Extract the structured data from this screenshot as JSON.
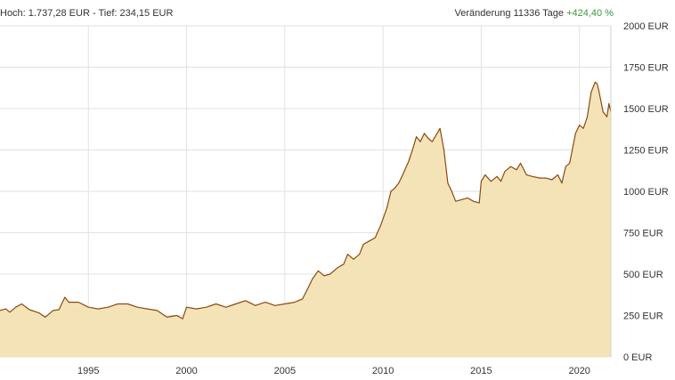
{
  "header": {
    "range_text": "Hoch: 1.737,28 EUR - Tief: 234,15 EUR",
    "change_label": "Veränderung 11336 Tage",
    "change_value": "+424,40 %"
  },
  "colors": {
    "line": "#8b4a10",
    "fill": "#f5e3b8",
    "grid": "#e2e2e2",
    "positive": "#3a9a3a"
  },
  "chart_data": {
    "type": "area",
    "title": "",
    "xlabel": "",
    "ylabel": "",
    "xlim": [
      1990.5,
      2021.6
    ],
    "ylim": [
      0,
      2000
    ],
    "x_ticks": [
      {
        "value": 1995,
        "label": "1995"
      },
      {
        "value": 2000,
        "label": "2000"
      },
      {
        "value": 2005,
        "label": "2005"
      },
      {
        "value": 2010,
        "label": "2010"
      },
      {
        "value": 2015,
        "label": "2015"
      },
      {
        "value": 2020,
        "label": "2020"
      }
    ],
    "y_ticks": [
      {
        "value": 0,
        "label": "0 EUR"
      },
      {
        "value": 250,
        "label": "250 EUR"
      },
      {
        "value": 500,
        "label": "500 EUR"
      },
      {
        "value": 750,
        "label": "750 EUR"
      },
      {
        "value": 1000,
        "label": "1000 EUR"
      },
      {
        "value": 1250,
        "label": "1250 EUR"
      },
      {
        "value": 1500,
        "label": "1500 EUR"
      },
      {
        "value": 1750,
        "label": "1750 EUR"
      },
      {
        "value": 2000,
        "label": "2000 EUR"
      }
    ],
    "grid": true,
    "series": [
      {
        "x": [
          1990.5,
          1990.8,
          1991.0,
          1991.3,
          1991.6,
          1992.0,
          1992.5,
          1992.8,
          1993.2,
          1993.5,
          1993.8,
          1994.0,
          1994.5,
          1995.0,
          1995.5,
          1996.0,
          1996.5,
          1997.0,
          1997.5,
          1998.0,
          1998.5,
          1999.0,
          1999.5,
          1999.8,
          2000.0,
          2000.5,
          2001.0,
          2001.5,
          2002.0,
          2002.5,
          2003.0,
          2003.5,
          2004.0,
          2004.5,
          2005.0,
          2005.5,
          2005.9,
          2006.2,
          2006.4,
          2006.7,
          2007.0,
          2007.3,
          2007.7,
          2008.0,
          2008.2,
          2008.5,
          2008.8,
          2009.0,
          2009.3,
          2009.6,
          2009.9,
          2010.2,
          2010.4,
          2010.6,
          2010.8,
          2011.0,
          2011.3,
          2011.5,
          2011.7,
          2011.9,
          2012.1,
          2012.3,
          2012.5,
          2012.7,
          2012.9,
          2013.1,
          2013.3,
          2013.5,
          2013.7,
          2014.0,
          2014.3,
          2014.6,
          2014.9,
          2015.0,
          2015.2,
          2015.5,
          2015.8,
          2016.0,
          2016.2,
          2016.5,
          2016.8,
          2017.0,
          2017.3,
          2017.6,
          2018.0,
          2018.3,
          2018.6,
          2018.9,
          2019.1,
          2019.3,
          2019.5,
          2019.8,
          2020.0,
          2020.2,
          2020.4,
          2020.6,
          2020.8,
          2020.9,
          2021.0,
          2021.2,
          2021.4,
          2021.5,
          2021.6
        ],
        "y": [
          280,
          290,
          270,
          300,
          320,
          285,
          265,
          240,
          280,
          285,
          360,
          330,
          330,
          300,
          290,
          300,
          320,
          320,
          300,
          290,
          280,
          240,
          250,
          230,
          300,
          290,
          300,
          320,
          300,
          320,
          340,
          310,
          330,
          310,
          320,
          330,
          350,
          420,
          470,
          520,
          490,
          500,
          540,
          560,
          620,
          590,
          620,
          680,
          700,
          720,
          800,
          900,
          1000,
          1020,
          1050,
          1100,
          1180,
          1250,
          1330,
          1300,
          1350,
          1320,
          1300,
          1340,
          1380,
          1250,
          1050,
          1000,
          940,
          950,
          960,
          940,
          930,
          1060,
          1100,
          1060,
          1090,
          1060,
          1120,
          1150,
          1130,
          1170,
          1100,
          1090,
          1080,
          1080,
          1070,
          1100,
          1050,
          1150,
          1170,
          1350,
          1400,
          1380,
          1450,
          1600,
          1660,
          1650,
          1600,
          1480,
          1450,
          1530,
          1480
        ]
      }
    ]
  }
}
